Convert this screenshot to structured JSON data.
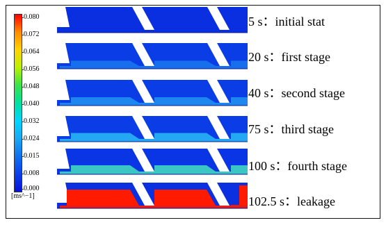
{
  "legend": {
    "ticks": [
      "0.080",
      "0.072",
      "0.064",
      "0.056",
      "0.048",
      "0.040",
      "0.032",
      "0.024",
      "0.015",
      "0.008",
      "0.000"
    ],
    "unit": "[ms^−1]",
    "colors": [
      "#ff0000",
      "#ff8c00",
      "#ffd400",
      "#b9f000",
      "#39e34c",
      "#00e0a0",
      "#00d6ff",
      "#19a9f2",
      "#1070ee",
      "#0b3fe8",
      "#0514d8"
    ]
  },
  "panels": [
    {
      "label": "5 s：initial stat"
    },
    {
      "label": "20 s：first stage"
    },
    {
      "label": "40 s：second stage"
    },
    {
      "label": "75 s：third stage"
    },
    {
      "label": "100 s：fourth stage"
    },
    {
      "label": "102.5 s：leakage"
    }
  ]
}
